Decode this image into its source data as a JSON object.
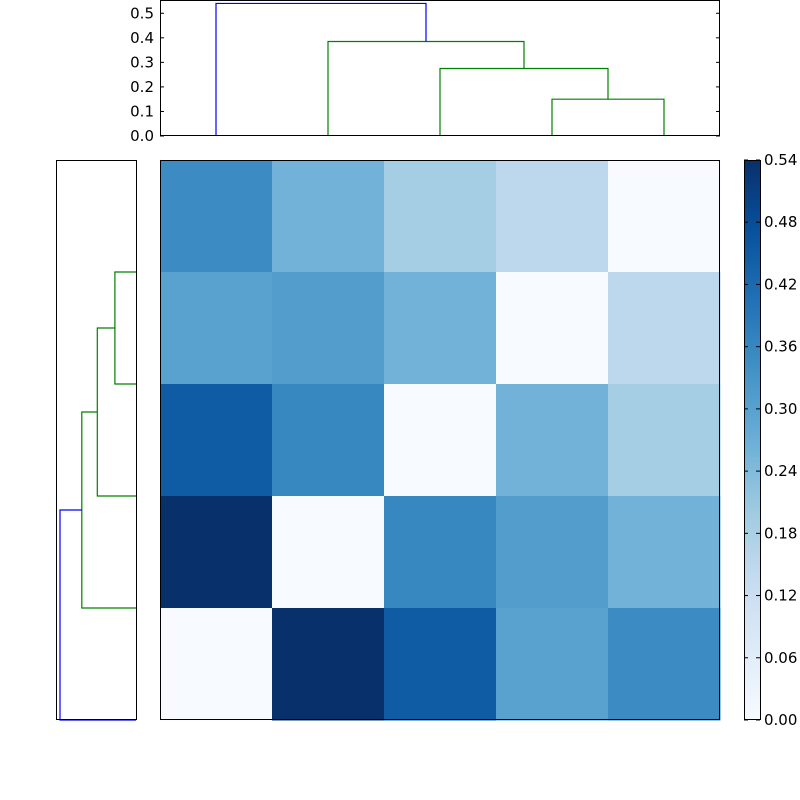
{
  "chart_data": {
    "type": "heatmap",
    "colormap": "Blues",
    "link_colors": {
      "above_threshold": "#0000ff",
      "below_threshold": "#008000"
    },
    "matrix": [
      [
        0.35,
        0.26,
        0.19,
        0.15,
        0.0
      ],
      [
        0.3,
        0.31,
        0.26,
        0.0,
        0.15
      ],
      [
        0.45,
        0.36,
        0.0,
        0.26,
        0.19
      ],
      [
        0.54,
        0.0,
        0.36,
        0.31,
        0.26
      ],
      [
        0.0,
        0.54,
        0.45,
        0.3,
        0.35
      ]
    ],
    "colorbar": {
      "min": 0.0,
      "max": 0.54,
      "tick_labels": [
        "0.00",
        "0.06",
        "0.12",
        "0.18",
        "0.24",
        "0.30",
        "0.36",
        "0.42",
        "0.48",
        "0.54"
      ]
    },
    "top_dendrogram": {
      "ylim": [
        0,
        0.55
      ],
      "tick_labels": [
        "0.0",
        "0.1",
        "0.2",
        "0.3",
        "0.4",
        "0.5"
      ],
      "links": [
        {
          "x": [
            3,
            4
          ],
          "height": 0.15,
          "color": "#008000"
        },
        {
          "x": [
            2,
            3.5
          ],
          "height": 0.275,
          "color": "#008000"
        },
        {
          "x": [
            1,
            2.75
          ],
          "height": 0.385,
          "color": "#008000"
        },
        {
          "x": [
            0,
            1.875
          ],
          "height": 0.54,
          "color": "#0000ff"
        }
      ]
    },
    "left_dendrogram": {
      "links": [
        {
          "y": [
            0.5,
            1.5
          ],
          "height": 0.15,
          "color": "#008000"
        },
        {
          "y": [
            1.0,
            2.5
          ],
          "height": 0.275,
          "color": "#008000"
        },
        {
          "y": [
            1.75,
            3.5
          ],
          "height": 0.385,
          "color": "#008000"
        },
        {
          "y": [
            2.625,
            4.5
          ],
          "height": 0.54,
          "color": "#0000ff"
        }
      ]
    }
  }
}
